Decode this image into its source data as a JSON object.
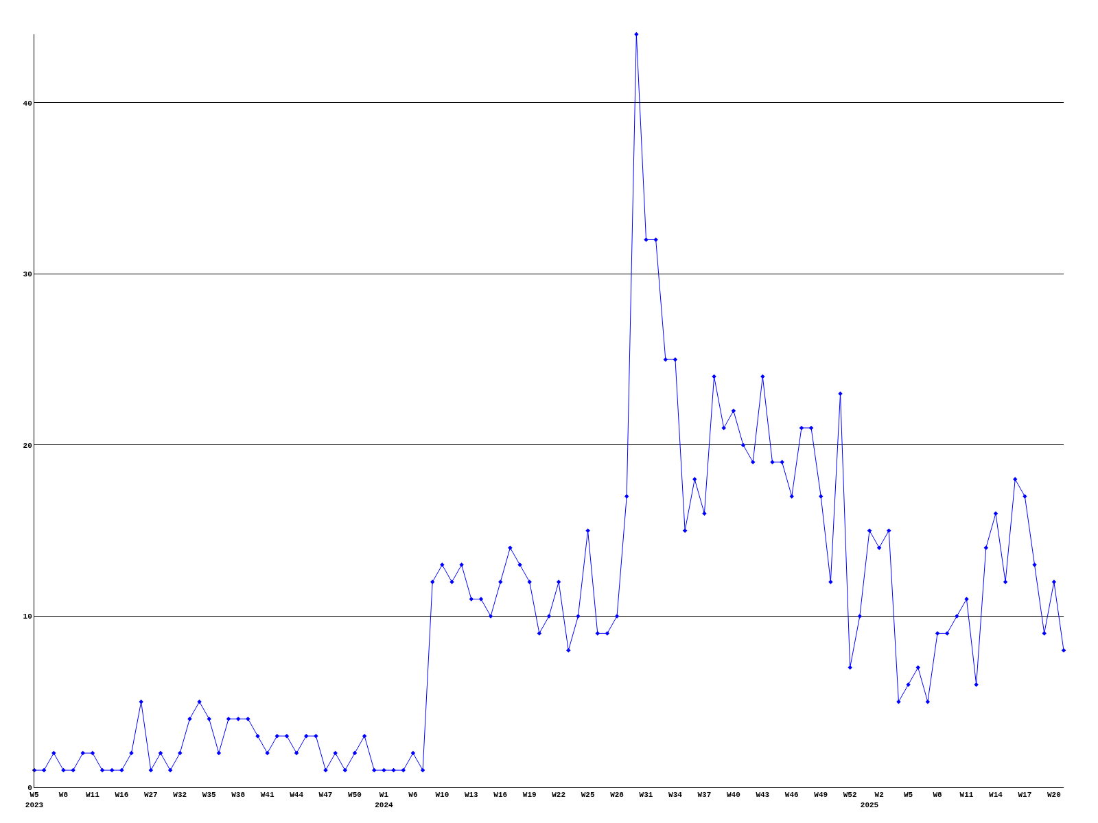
{
  "chart_data": {
    "type": "line",
    "categories": [
      "W5\n2023",
      null,
      null,
      "W8",
      null,
      null,
      "W11",
      null,
      null,
      "W16",
      null,
      null,
      "W27",
      null,
      null,
      "W32",
      null,
      null,
      "W35",
      null,
      null,
      "W38",
      null,
      null,
      "W41",
      null,
      null,
      "W44",
      null,
      null,
      "W47",
      null,
      null,
      "W50",
      null,
      null,
      "W1\n2024",
      null,
      null,
      "W6",
      null,
      null,
      "W10",
      null,
      null,
      "W13",
      null,
      null,
      "W16",
      null,
      null,
      "W19",
      null,
      null,
      "W22",
      null,
      null,
      "W25",
      null,
      null,
      "W28",
      null,
      null,
      "W31",
      null,
      null,
      "W34",
      null,
      null,
      "W37",
      null,
      null,
      "W40",
      null,
      null,
      "W43",
      null,
      null,
      "W46",
      null,
      null,
      "W49",
      null,
      null,
      "W52",
      null,
      "\n2025",
      "W2",
      null,
      null,
      "W5",
      null,
      null,
      "W8",
      null,
      null,
      "W11",
      null,
      null,
      "W14",
      null,
      null,
      "W17",
      null,
      null,
      "W20",
      null
    ],
    "series": [
      {
        "color": "#0000ff",
        "values": [
          1,
          1,
          2,
          1,
          1,
          2,
          2,
          1,
          1,
          1,
          2,
          5,
          1,
          2,
          1,
          2,
          4,
          5,
          4,
          2,
          4,
          4,
          4,
          3,
          2,
          3,
          3,
          2,
          3,
          3,
          1,
          2,
          1,
          2,
          3,
          1,
          1,
          1,
          1,
          2,
          1,
          12,
          13,
          12,
          13,
          11,
          11,
          10,
          12,
          14,
          13,
          12,
          9,
          10,
          12,
          8,
          10,
          15,
          9,
          9,
          10,
          17,
          44,
          32,
          32,
          25,
          25,
          15,
          18,
          16,
          24,
          21,
          22,
          20,
          19,
          24,
          19,
          19,
          17,
          21,
          21,
          17,
          12,
          23,
          7,
          10,
          15,
          14,
          15,
          5,
          6,
          7,
          5,
          9,
          9,
          10,
          11,
          6,
          14,
          16,
          12,
          18,
          17,
          13,
          9,
          12,
          8
        ]
      }
    ],
    "ylim": [
      0,
      44
    ],
    "yticks": [
      0,
      10,
      20,
      30,
      40
    ],
    "grid": "y",
    "legend": false,
    "marker": "diamond",
    "line_style": "solid"
  }
}
